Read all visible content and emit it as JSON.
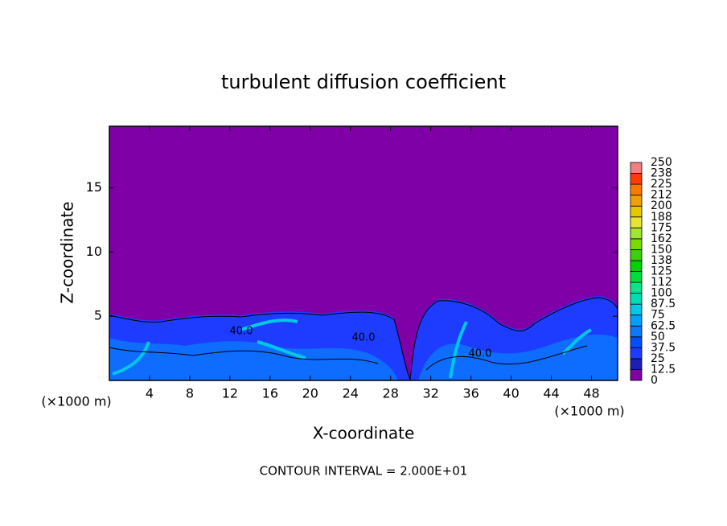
{
  "chart_data": {
    "type": "contour",
    "title": "turbulent diffusion coefficient",
    "x_label": "X-coordinate",
    "y_label": "Z-coordinate",
    "x_unit": "(×1000 m)",
    "footnote": "CONTOUR INTERVAL = 2.000E+01",
    "contour_labels": [
      "40.0",
      "40.0",
      "40.0"
    ],
    "xlim": [
      0,
      50.6
    ],
    "xticks": [
      4,
      8,
      12,
      16,
      20,
      24,
      28,
      32,
      36,
      40,
      44,
      48
    ],
    "ylim": [
      0,
      19.8
    ],
    "yticks": [
      5,
      10,
      15
    ],
    "colorbar": {
      "ticks": [
        0,
        12.5,
        25,
        37.5,
        50,
        62.5,
        75,
        87.5,
        100,
        112,
        125,
        138,
        150,
        162,
        175,
        188,
        200,
        212,
        225,
        238,
        250
      ],
      "colors": [
        "#8000a8",
        "#1e1eb4",
        "#1e3cff",
        "#0050ff",
        "#0a78ff",
        "#00a0ff",
        "#00c8e6",
        "#00dcb4",
        "#00e68c",
        "#00dc3c",
        "#00d200",
        "#3cd200",
        "#78dc00",
        "#a0e632",
        "#e6e632",
        "#e6c800",
        "#f0a000",
        "#ff7800",
        "#ff3c00",
        "#f08080"
      ]
    }
  }
}
